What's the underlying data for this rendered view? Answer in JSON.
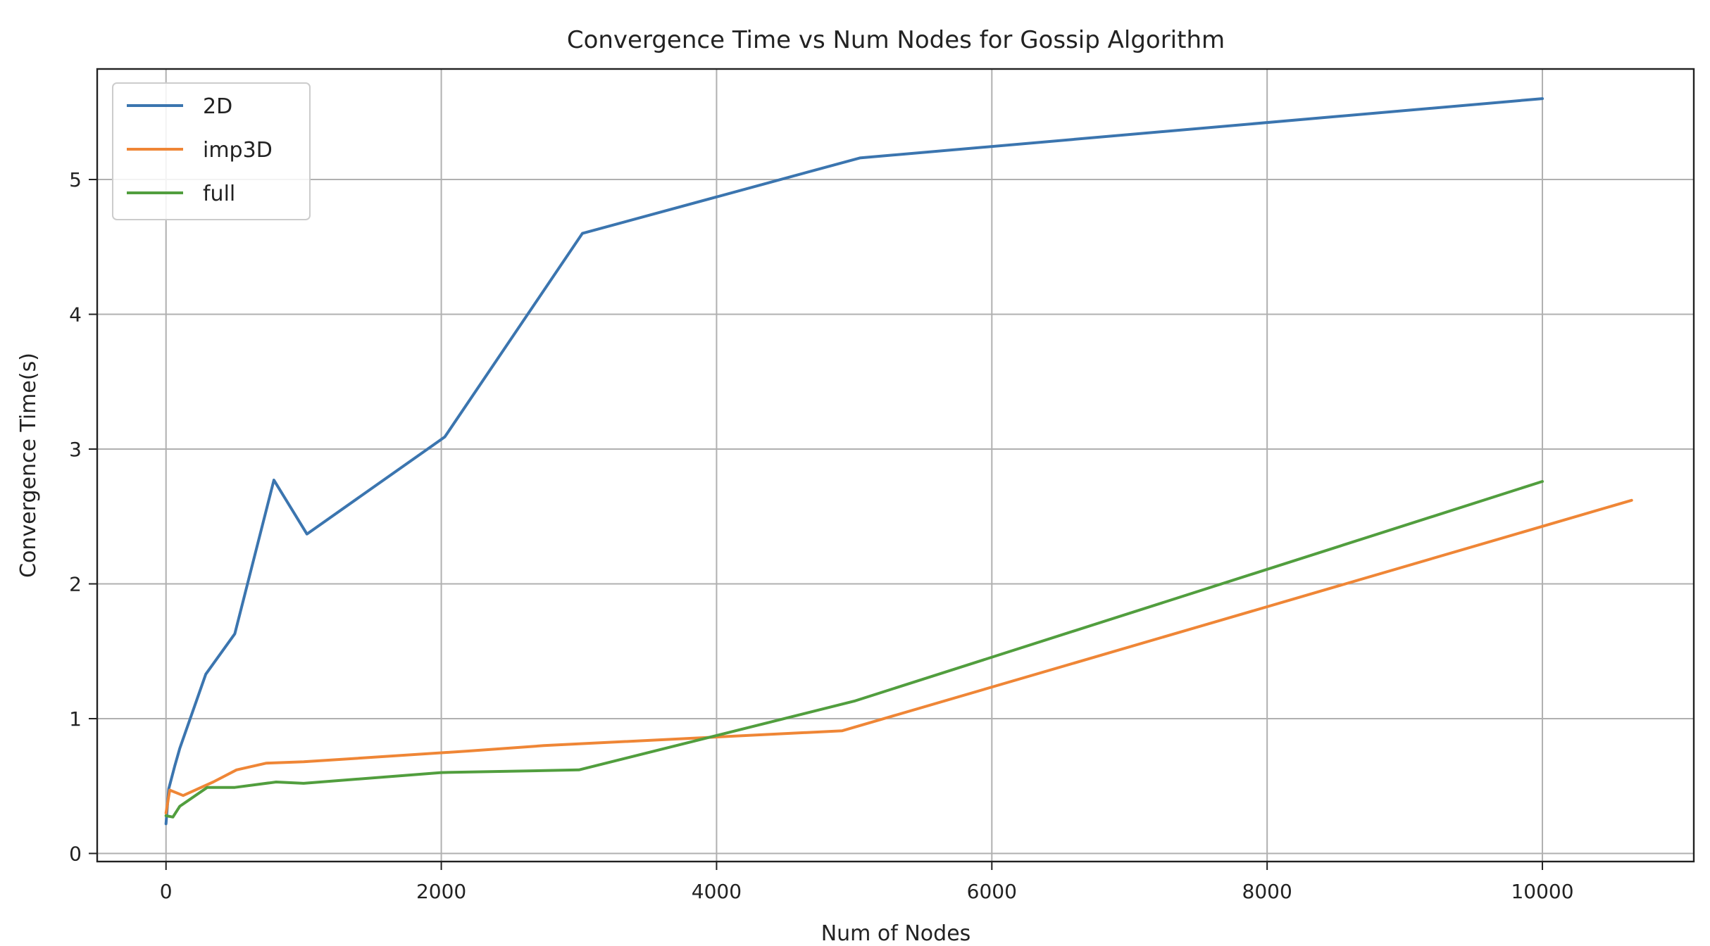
{
  "chart_data": {
    "type": "line",
    "title": "Convergence Time vs Num Nodes for Gossip Algorithm",
    "xlabel": "Num of Nodes",
    "ylabel": "Convergence Time(s)",
    "xlim": [
      -500,
      11100
    ],
    "ylim": [
      -0.06,
      5.82
    ],
    "xticks": [
      0,
      2000,
      4000,
      6000,
      8000,
      10000
    ],
    "yticks": [
      0,
      1,
      2,
      3,
      4,
      5
    ],
    "grid": true,
    "legend_position": "top-left",
    "series": [
      {
        "name": "2D",
        "color": "#3b75af",
        "x": [
          0,
          20,
          64,
          100,
          289,
          500,
          784,
          1024,
          2025,
          3025,
          5041,
          10000
        ],
        "y": [
          0.22,
          0.48,
          0.65,
          0.78,
          1.33,
          1.63,
          2.77,
          2.37,
          3.09,
          4.6,
          5.16,
          5.6
        ]
      },
      {
        "name": "imp3D",
        "color": "#ef8636",
        "x": [
          0,
          27,
          125,
          343,
          512,
          729,
          1000,
          2197,
          2744,
          4913,
          10648
        ],
        "y": [
          0.3,
          0.47,
          0.43,
          0.53,
          0.62,
          0.67,
          0.68,
          0.76,
          0.8,
          0.91,
          2.62
        ]
      },
      {
        "name": "full",
        "color": "#519e3e",
        "x": [
          0,
          50,
          100,
          300,
          500,
          800,
          1000,
          2000,
          3000,
          5000,
          10000
        ],
        "y": [
          0.28,
          0.27,
          0.35,
          0.49,
          0.49,
          0.53,
          0.52,
          0.6,
          0.62,
          1.13,
          2.76
        ]
      }
    ]
  }
}
